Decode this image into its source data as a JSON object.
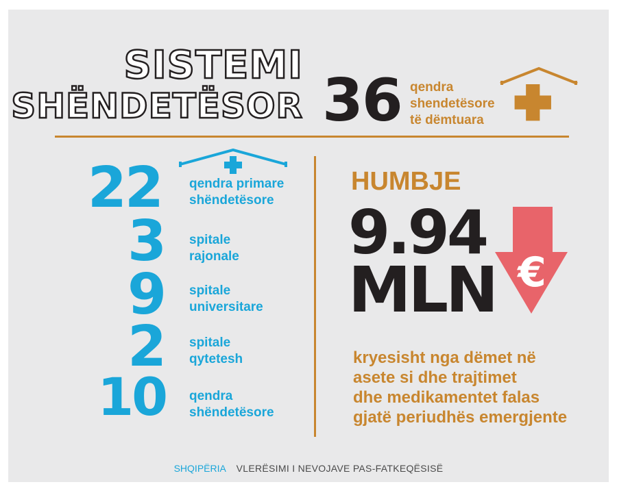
{
  "header": {
    "title_line1": "SISTEMI",
    "title_line2": "SHËNDETËSOR",
    "damaged_count": "36",
    "damaged_label_lines": [
      "qendra",
      "shendetësore",
      "të dëmtuara"
    ]
  },
  "stats": [
    {
      "value": "22",
      "label_lines": [
        "qendra primare",
        "shëndetësore"
      ]
    },
    {
      "value": "3",
      "label_lines": [
        "spitale",
        "rajonale"
      ]
    },
    {
      "value": "9",
      "label_lines": [
        "spitale",
        "universitare"
      ]
    },
    {
      "value": "2",
      "label_lines": [
        "spitale",
        "qytetesh"
      ]
    },
    {
      "value": "10",
      "label_lines": [
        "qendra",
        "shëndetësore"
      ]
    }
  ],
  "loss": {
    "heading": "HUMBJE",
    "amount": "9.94",
    "unit": "MLN",
    "currency_symbol": "€",
    "description_lines": [
      "kryesisht nga dëmet në",
      "asete si dhe trajtimet",
      "dhe medikamentet falas",
      "gjatë periudhës emergjente"
    ]
  },
  "footer": {
    "country": "SHQIPËRIA",
    "subtitle": "VLERËSIMI I NEVOJAVE PAS-FATKEQËSISË"
  },
  "colors": {
    "background": "#e9e9ea",
    "accent_gold": "#c8862f",
    "accent_blue": "#1aa6d9",
    "text_dark": "#231f20",
    "arrow_red": "#e8646a"
  },
  "icons": [
    "house-cross-icon-gold",
    "house-cross-icon-blue",
    "down-arrow-euro-icon"
  ]
}
